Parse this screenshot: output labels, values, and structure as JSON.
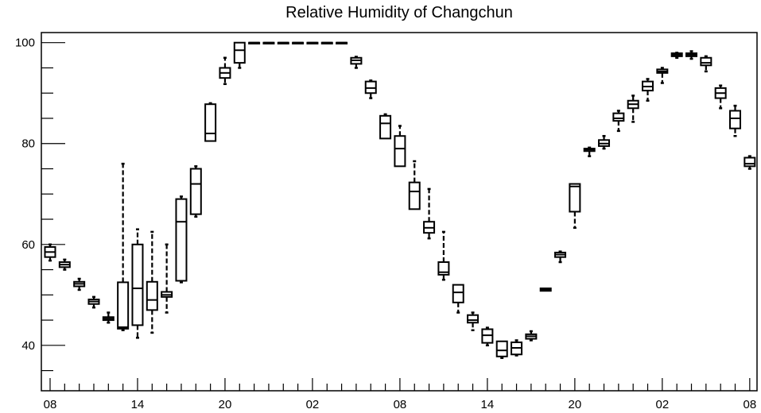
{
  "chart_data": {
    "type": "box",
    "title": "Relative Humidity of Changchun",
    "xlabel": "",
    "ylabel": "",
    "ylim": [
      31,
      102
    ],
    "xlim": [
      -0.6,
      48.5
    ],
    "grid": false,
    "x_tick_labels": [
      {
        "x": 0,
        "label": "08"
      },
      {
        "x": 6,
        "label": "14"
      },
      {
        "x": 12,
        "label": "20"
      },
      {
        "x": 18,
        "label": "02"
      },
      {
        "x": 24,
        "label": "08"
      },
      {
        "x": 30,
        "label": "14"
      },
      {
        "x": 36,
        "label": "20"
      },
      {
        "x": 42,
        "label": "02"
      },
      {
        "x": 48,
        "label": "08"
      }
    ],
    "y_ticks": [
      40,
      60,
      80,
      100
    ],
    "boxes": [
      {
        "x": 0,
        "q1": 57.5,
        "median": 58.5,
        "q3": 59.5,
        "whisker_low": 56.8,
        "whisker_high": 60.0
      },
      {
        "x": 1,
        "q1": 55.5,
        "median": 56.0,
        "q3": 56.5,
        "whisker_low": 55.0,
        "whisker_high": 57.0
      },
      {
        "x": 2,
        "q1": 51.7,
        "median": 52.2,
        "q3": 52.6,
        "whisker_low": 51.0,
        "whisker_high": 53.2
      },
      {
        "x": 3,
        "q1": 48.2,
        "median": 48.7,
        "q3": 49.1,
        "whisker_low": 47.5,
        "whisker_high": 49.6
      },
      {
        "x": 4,
        "q1": 45.0,
        "median": 45.3,
        "q3": 45.6,
        "whisker_low": 44.5,
        "whisker_high": 46.5
      },
      {
        "x": 5,
        "q1": 43.3,
        "median": 43.6,
        "q3": 52.5,
        "whisker_low": 43.0,
        "whisker_high": 76.0
      },
      {
        "x": 6,
        "q1": 44.0,
        "median": 51.3,
        "q3": 60.0,
        "whisker_low": 41.5,
        "whisker_high": 63.0
      },
      {
        "x": 7,
        "q1": 47.0,
        "median": 49.0,
        "q3": 52.6,
        "whisker_low": 42.5,
        "whisker_high": 62.5
      },
      {
        "x": 8,
        "q1": 49.6,
        "median": 50.0,
        "q3": 50.6,
        "whisker_low": 46.5,
        "whisker_high": 60.0
      },
      {
        "x": 9,
        "q1": 52.8,
        "median": 64.5,
        "q3": 69.0,
        "whisker_low": 52.5,
        "whisker_high": 69.5
      },
      {
        "x": 10,
        "q1": 66.0,
        "median": 72.0,
        "q3": 75.0,
        "whisker_low": 65.5,
        "whisker_high": 75.5
      },
      {
        "x": 11,
        "q1": 80.5,
        "median": 82.0,
        "q3": 87.8,
        "whisker_low": 80.5,
        "whisker_high": 88.0
      },
      {
        "x": 12,
        "q1": 93.0,
        "median": 94.0,
        "q3": 95.0,
        "whisker_low": 91.8,
        "whisker_high": 97.0
      },
      {
        "x": 13,
        "q1": 96.0,
        "median": 98.5,
        "q3": 100.0,
        "whisker_low": 95.0,
        "whisker_high": 100.0
      },
      {
        "x": 14,
        "q1": 100.0,
        "median": 100.0,
        "q3": 100.0,
        "whisker_low": 100.0,
        "whisker_high": 100.0
      },
      {
        "x": 15,
        "q1": 100.0,
        "median": 100.0,
        "q3": 100.0,
        "whisker_low": 100.0,
        "whisker_high": 100.0
      },
      {
        "x": 16,
        "q1": 100.0,
        "median": 100.0,
        "q3": 100.0,
        "whisker_low": 100.0,
        "whisker_high": 100.0
      },
      {
        "x": 17,
        "q1": 100.0,
        "median": 100.0,
        "q3": 100.0,
        "whisker_low": 100.0,
        "whisker_high": 100.0
      },
      {
        "x": 18,
        "q1": 100.0,
        "median": 100.0,
        "q3": 100.0,
        "whisker_low": 100.0,
        "whisker_high": 100.0
      },
      {
        "x": 19,
        "q1": 100.0,
        "median": 100.0,
        "q3": 100.0,
        "whisker_low": 100.0,
        "whisker_high": 100.0
      },
      {
        "x": 20,
        "q1": 100.0,
        "median": 100.0,
        "q3": 100.0,
        "whisker_low": 100.0,
        "whisker_high": 100.0
      },
      {
        "x": 21,
        "q1": 95.8,
        "median": 96.5,
        "q3": 97.0,
        "whisker_low": 95.0,
        "whisker_high": 97.2
      },
      {
        "x": 22,
        "q1": 90.0,
        "median": 91.0,
        "q3": 92.3,
        "whisker_low": 89.0,
        "whisker_high": 92.5
      },
      {
        "x": 23,
        "q1": 81.0,
        "median": 84.0,
        "q3": 85.5,
        "whisker_low": 81.0,
        "whisker_high": 85.8
      },
      {
        "x": 24,
        "q1": 75.5,
        "median": 79.0,
        "q3": 81.5,
        "whisker_low": 75.5,
        "whisker_high": 83.5
      },
      {
        "x": 25,
        "q1": 67.0,
        "median": 70.5,
        "q3": 72.3,
        "whisker_low": 67.0,
        "whisker_high": 76.5
      },
      {
        "x": 26,
        "q1": 62.3,
        "median": 63.3,
        "q3": 64.5,
        "whisker_low": 61.2,
        "whisker_high": 71.0
      },
      {
        "x": 27,
        "q1": 54.0,
        "median": 54.5,
        "q3": 56.5,
        "whisker_low": 53.0,
        "whisker_high": 62.5
      },
      {
        "x": 28,
        "q1": 48.5,
        "median": 50.5,
        "q3": 52.0,
        "whisker_low": 46.5,
        "whisker_high": 52.0
      },
      {
        "x": 29,
        "q1": 44.5,
        "median": 45.0,
        "q3": 46.0,
        "whisker_low": 43.0,
        "whisker_high": 46.5
      },
      {
        "x": 30,
        "q1": 40.5,
        "median": 42.0,
        "q3": 43.2,
        "whisker_low": 40.0,
        "whisker_high": 43.5
      },
      {
        "x": 31,
        "q1": 37.8,
        "median": 39.0,
        "q3": 40.8,
        "whisker_low": 37.5,
        "whisker_high": 40.8
      },
      {
        "x": 32,
        "q1": 38.2,
        "median": 39.5,
        "q3": 40.6,
        "whisker_low": 38.0,
        "whisker_high": 41.0
      },
      {
        "x": 33,
        "q1": 41.3,
        "median": 41.8,
        "q3": 42.2,
        "whisker_low": 41.0,
        "whisker_high": 42.8
      },
      {
        "x": 34,
        "q1": 50.8,
        "median": 51.0,
        "q3": 51.3,
        "whisker_low": 50.8,
        "whisker_high": 51.3
      },
      {
        "x": 35,
        "q1": 57.5,
        "median": 58.0,
        "q3": 58.4,
        "whisker_low": 56.5,
        "whisker_high": 58.6
      },
      {
        "x": 36,
        "q1": 66.5,
        "median": 71.5,
        "q3": 72.0,
        "whisker_low": 63.3,
        "whisker_high": 72.0
      },
      {
        "x": 37,
        "q1": 78.5,
        "median": 78.8,
        "q3": 79.0,
        "whisker_low": 77.5,
        "whisker_high": 79.2
      },
      {
        "x": 38,
        "q1": 79.5,
        "median": 80.0,
        "q3": 80.7,
        "whisker_low": 79.0,
        "whisker_high": 81.5
      },
      {
        "x": 39,
        "q1": 84.5,
        "median": 85.0,
        "q3": 86.0,
        "whisker_low": 82.5,
        "whisker_high": 86.5
      },
      {
        "x": 40,
        "q1": 87.0,
        "median": 87.8,
        "q3": 88.5,
        "whisker_low": 84.3,
        "whisker_high": 89.5
      },
      {
        "x": 41,
        "q1": 90.5,
        "median": 91.3,
        "q3": 92.3,
        "whisker_low": 88.5,
        "whisker_high": 92.8
      },
      {
        "x": 42,
        "q1": 94.0,
        "median": 94.3,
        "q3": 94.7,
        "whisker_low": 92.0,
        "whisker_high": 95.0
      },
      {
        "x": 43,
        "q1": 97.3,
        "median": 97.6,
        "q3": 97.9,
        "whisker_low": 97.0,
        "whisker_high": 98.0
      },
      {
        "x": 44,
        "q1": 97.3,
        "median": 97.6,
        "q3": 97.9,
        "whisker_low": 96.8,
        "whisker_high": 98.3
      },
      {
        "x": 45,
        "q1": 95.5,
        "median": 96.0,
        "q3": 97.0,
        "whisker_low": 94.3,
        "whisker_high": 97.3
      },
      {
        "x": 46,
        "q1": 89.0,
        "median": 90.0,
        "q3": 91.0,
        "whisker_low": 87.0,
        "whisker_high": 91.5
      },
      {
        "x": 47,
        "q1": 83.0,
        "median": 85.0,
        "q3": 86.5,
        "whisker_low": 81.5,
        "whisker_high": 87.5
      },
      {
        "x": 48,
        "q1": 75.5,
        "median": 76.0,
        "q3": 77.2,
        "whisker_low": 75.0,
        "whisker_high": 77.5
      }
    ]
  }
}
